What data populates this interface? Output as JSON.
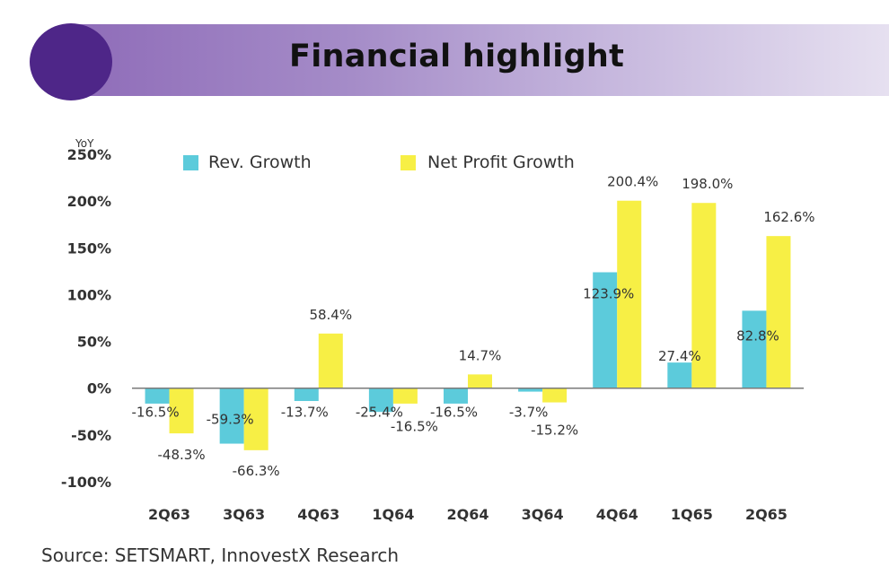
{
  "header": {
    "title": "Financial highlight"
  },
  "source": "Source: SETSMART, InnovestX Research",
  "colors": {
    "rev": "#5ccbdb",
    "profit": "#f7ef45",
    "axis": "#7a7a7a",
    "text": "#333333",
    "header_dot": "#4e2688"
  },
  "chart_data": {
    "type": "bar",
    "y_unit_label": "YoY",
    "categories": [
      "2Q63",
      "3Q63",
      "4Q63",
      "1Q64",
      "2Q64",
      "3Q64",
      "4Q64",
      "1Q65",
      "2Q65"
    ],
    "series": [
      {
        "name": "Rev. Growth",
        "values": [
          -16.5,
          -59.3,
          -13.7,
          -25.4,
          -16.5,
          -3.7,
          123.9,
          27.4,
          82.8
        ],
        "labels": [
          "-16.5%",
          "-59.3%",
          "-13.7%",
          "-25.4%",
          "-16.5%",
          "-3.7%",
          "123.9%",
          "27.4%",
          "82.8%"
        ]
      },
      {
        "name": "Net Profit Growth",
        "values": [
          -48.3,
          -66.3,
          58.4,
          -16.5,
          14.7,
          -15.2,
          200.4,
          198.0,
          162.6
        ],
        "labels": [
          "-48.3%",
          "-66.3%",
          "58.4%",
          "-16.5%",
          "14.7%",
          "-15.2%",
          "200.4%",
          "198.0%",
          "162.6%"
        ]
      }
    ],
    "ylim": [
      -100,
      250
    ],
    "yticks": [
      -100,
      -50,
      0,
      50,
      100,
      150,
      200,
      250
    ],
    "ytick_labels": [
      "-100%",
      "-50%",
      "0%",
      "50%",
      "100%",
      "150%",
      "200%",
      "250%"
    ],
    "legend_position": "top"
  }
}
